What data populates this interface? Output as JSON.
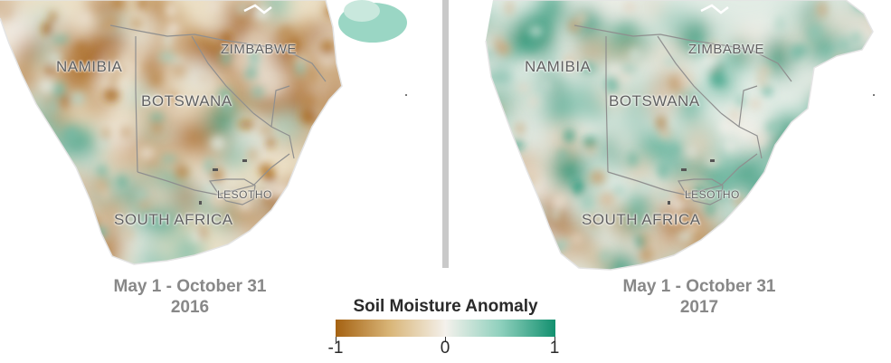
{
  "colors": {
    "dry": "#a56212",
    "neutral": "#f4f1ec",
    "wet": "#13906f",
    "border": "#8f8f8f",
    "divider": "#c9c9c9",
    "caption": "#888888"
  },
  "panels": [
    {
      "id": "left",
      "period": "May 1 - October 31",
      "year": "2016",
      "labels": {
        "namibia": "NAMIBIA",
        "botswana": "BOTSWANA",
        "zimbabwe": "ZIMBABWE",
        "lesotho": "LESOTHO",
        "south_africa": "SOUTH AFRICA"
      }
    },
    {
      "id": "right",
      "period": "May 1 - October 31",
      "year": "2017",
      "labels": {
        "namibia": "NAMIBIA",
        "botswana": "BOTSWANA",
        "zimbabwe": "ZIMBABWE",
        "lesotho": "LESOTHO",
        "south_africa": "SOUTH AFRICA"
      }
    }
  ],
  "legend": {
    "title": "Soil Moisture Anomaly",
    "min_label": "-1",
    "mid_label": "0",
    "max_label": "1",
    "min": -1,
    "max": 1
  }
}
